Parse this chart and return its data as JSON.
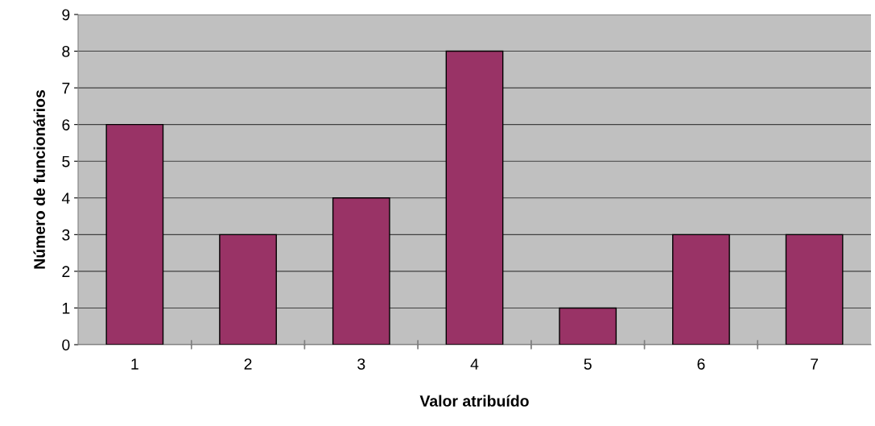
{
  "chart_data": {
    "type": "bar",
    "xlabel": "Valor atribuído",
    "ylabel": "Número de funcionários",
    "categories": [
      "1",
      "2",
      "3",
      "4",
      "5",
      "6",
      "7"
    ],
    "values": [
      6,
      3,
      4,
      8,
      1,
      3,
      3
    ],
    "color": "#993366",
    "ylim": [
      0,
      9
    ],
    "yticks": [
      0,
      1,
      2,
      3,
      4,
      5,
      6,
      7,
      8,
      9
    ],
    "grid": "y",
    "legend": false
  }
}
